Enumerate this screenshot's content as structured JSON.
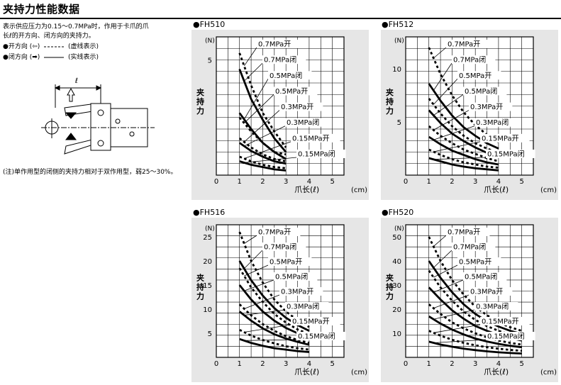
{
  "header": {
    "title": "夹持力性能数据"
  },
  "description": {
    "line1": "表示供应压力为0.15～0.7MPa时，作用于卡爪的爪",
    "line2": "长ℓ的开方向、闭方向的夹持力。",
    "open_label": "●开方向 (⇦)",
    "open_style": "(虚线表示)",
    "closed_label": "●闭方向 (➡)",
    "closed_style": "(实线表示)"
  },
  "schematic": {
    "length_label": "ℓ"
  },
  "note": "(注)单作用型的闭侧的夹持力相对于双作用型，弱25～30%。",
  "chart_data": [
    {
      "type": "line",
      "title": "●FH510",
      "ylabel": "夹持力",
      "yunit": "(N)",
      "xlabel": "爪长(ℓ)",
      "xunit": "(cm)",
      "xlim": [
        0,
        5.5
      ],
      "ylim": [
        0,
        6
      ],
      "xticks": [
        0,
        1,
        2,
        3,
        4,
        5
      ],
      "yticks": [
        5
      ],
      "grid": true,
      "x": [
        1,
        1.5,
        2,
        2.5,
        3
      ],
      "series": [
        {
          "name": "0.7MPa开",
          "style": "dashed",
          "values": [
            5.3,
            3.9,
            2.7,
            1.9,
            1.2
          ]
        },
        {
          "name": "0.7MPa闭",
          "style": "solid",
          "values": [
            4.6,
            3.3,
            2.4,
            1.6,
            1.0
          ]
        },
        {
          "name": "0.5MPa闭",
          "style": "solid",
          "values": [
            2.7,
            2.0,
            1.4,
            1.0,
            0.7
          ]
        },
        {
          "name": "0.5MPa开",
          "style": "dashed",
          "values": [
            2.5,
            1.9,
            1.4,
            1.0,
            0.9
          ]
        },
        {
          "name": "0.3MPa开",
          "style": "dashed",
          "values": [
            1.6,
            1.2,
            0.9,
            0.7,
            0.6
          ]
        },
        {
          "name": "0.3MPa闭",
          "style": "solid",
          "values": [
            1.4,
            1.05,
            0.8,
            0.6,
            0.5
          ]
        },
        {
          "name": "0.15MPa开",
          "style": "dashed",
          "values": [
            0.8,
            0.6,
            0.45,
            0.35,
            0.3
          ]
        },
        {
          "name": "0.15MPa闭",
          "style": "solid",
          "values": [
            0.6,
            0.45,
            0.35,
            0.25,
            0.2
          ]
        }
      ]
    },
    {
      "type": "line",
      "title": "●FH512",
      "ylabel": "夹持力",
      "yunit": "(N)",
      "xlabel": "爪长(ℓ)",
      "xunit": "(cm)",
      "xlim": [
        0,
        5.5
      ],
      "ylim": [
        0,
        13
      ],
      "xticks": [
        0,
        1,
        2,
        3,
        4,
        5
      ],
      "yticks": [
        5,
        10
      ],
      "grid": true,
      "x": [
        1,
        1.5,
        2,
        2.5,
        3,
        3.5,
        4
      ],
      "series": [
        {
          "name": "0.7MPa开",
          "style": "dashed",
          "values": [
            12,
            9.5,
            7.5,
            5.9,
            4.7,
            3.8,
            3.1
          ]
        },
        {
          "name": "0.7MPa闭",
          "style": "solid",
          "values": [
            8.6,
            7.0,
            5.6,
            4.5,
            3.7,
            3.0,
            2.5
          ]
        },
        {
          "name": "0.5MPa开",
          "style": "dashed",
          "values": [
            7.2,
            5.8,
            4.6,
            3.7,
            3.0,
            2.5,
            2.1
          ]
        },
        {
          "name": "0.5MPa闭",
          "style": "solid",
          "values": [
            6.1,
            4.9,
            3.9,
            3.2,
            2.6,
            2.1,
            1.7
          ]
        },
        {
          "name": "0.3MPa开",
          "style": "dashed",
          "values": [
            4.6,
            3.7,
            3.0,
            2.4,
            2.0,
            1.6,
            1.3
          ]
        },
        {
          "name": "0.3MPa闭",
          "style": "solid",
          "values": [
            3.6,
            2.9,
            2.3,
            1.9,
            1.5,
            1.2,
            1.0
          ]
        },
        {
          "name": "0.15MPa开",
          "style": "dashed",
          "values": [
            2.4,
            1.9,
            1.5,
            1.2,
            1.0,
            0.8,
            0.7
          ]
        },
        {
          "name": "0.15MPa闭",
          "style": "solid",
          "values": [
            1.6,
            1.3,
            1.0,
            0.8,
            0.65,
            0.55,
            0.45
          ]
        }
      ]
    },
    {
      "type": "line",
      "title": "●FH516",
      "ylabel": "夹持力",
      "yunit": "(N)",
      "xlabel": "爪长(ℓ)",
      "xunit": "(cm)",
      "xlim": [
        0,
        5.5
      ],
      "ylim": [
        0,
        27.5
      ],
      "xticks": [
        0,
        1,
        2,
        3,
        4,
        5
      ],
      "yticks": [
        5,
        10,
        15,
        20,
        25
      ],
      "grid": true,
      "x": [
        1,
        1.5,
        2,
        2.5,
        3,
        3.5,
        4
      ],
      "series": [
        {
          "name": "0.7MPa开",
          "style": "dashed",
          "values": [
            26,
            20,
            15.5,
            12,
            9.5,
            7.7,
            6.3
          ]
        },
        {
          "name": "0.7MPa闭",
          "style": "solid",
          "values": [
            20,
            16,
            12.8,
            10.2,
            8.2,
            6.7,
            5.5
          ]
        },
        {
          "name": "0.5MPa开",
          "style": "dashed",
          "values": [
            18.5,
            14.5,
            11.5,
            9.0,
            7.2,
            5.8,
            4.8
          ]
        },
        {
          "name": "0.5MPa闭",
          "style": "solid",
          "values": [
            15,
            12,
            9.5,
            7.6,
            6.1,
            5.0,
            4.1
          ]
        },
        {
          "name": "0.3MPa开",
          "style": "dashed",
          "values": [
            11,
            8.7,
            6.9,
            5.5,
            4.4,
            3.6,
            3.0
          ]
        },
        {
          "name": "0.3MPa闭",
          "style": "solid",
          "values": [
            9.5,
            7.6,
            6.0,
            4.8,
            3.9,
            3.2,
            2.6
          ]
        },
        {
          "name": "0.15MPa开",
          "style": "dashed",
          "values": [
            5.7,
            4.5,
            3.6,
            2.9,
            2.3,
            1.9,
            1.6
          ]
        },
        {
          "name": "0.15MPa闭",
          "style": "solid",
          "values": [
            3.8,
            3.0,
            2.4,
            1.9,
            1.6,
            1.3,
            1.1
          ]
        }
      ]
    },
    {
      "type": "line",
      "title": "●FH520",
      "ylabel": "夹持力",
      "yunit": "(N)",
      "xlabel": "爪长(ℓ)",
      "xunit": "(cm)",
      "xlim": [
        0,
        5.5
      ],
      "ylim": [
        0,
        55
      ],
      "xticks": [
        0,
        1,
        2,
        3,
        4,
        5
      ],
      "yticks": [
        10,
        20,
        30,
        40,
        50
      ],
      "grid": true,
      "x": [
        1,
        1.5,
        2,
        2.5,
        3,
        3.5,
        4,
        4.5,
        5
      ],
      "series": [
        {
          "name": "0.7MPa开",
          "style": "dashed",
          "values": [
            50,
            40,
            32,
            26,
            21,
            17.5,
            14.5,
            12.5,
            11
          ]
        },
        {
          "name": "0.7MPa闭",
          "style": "solid",
          "values": [
            40,
            33,
            27,
            22,
            18,
            15,
            12.8,
            11,
            9.7
          ]
        },
        {
          "name": "0.5MPa开",
          "style": "dashed",
          "values": [
            36,
            29,
            23.5,
            19,
            15.5,
            13,
            11,
            9.5,
            8.3
          ]
        },
        {
          "name": "0.5MPa闭",
          "style": "solid",
          "values": [
            29,
            24,
            19.5,
            16,
            13,
            11,
            9.3,
            8.0,
            7.0
          ]
        },
        {
          "name": "0.3MPa开",
          "style": "dashed",
          "values": [
            22,
            18,
            14.5,
            12,
            10,
            8.3,
            7.0,
            6.0,
            5.3
          ]
        },
        {
          "name": "0.3MPa闭",
          "style": "solid",
          "values": [
            17,
            14,
            11.5,
            9.5,
            7.8,
            6.6,
            5.6,
            4.8,
            4.2
          ]
        },
        {
          "name": "0.15MPa开",
          "style": "dashed",
          "values": [
            11,
            9.0,
            7.3,
            6.0,
            5.0,
            4.2,
            3.6,
            3.1,
            2.7
          ]
        },
        {
          "name": "0.15MPa闭",
          "style": "solid",
          "values": [
            6.5,
            5.3,
            4.4,
            3.6,
            3.0,
            2.5,
            2.1,
            1.8,
            1.6
          ]
        }
      ]
    }
  ]
}
